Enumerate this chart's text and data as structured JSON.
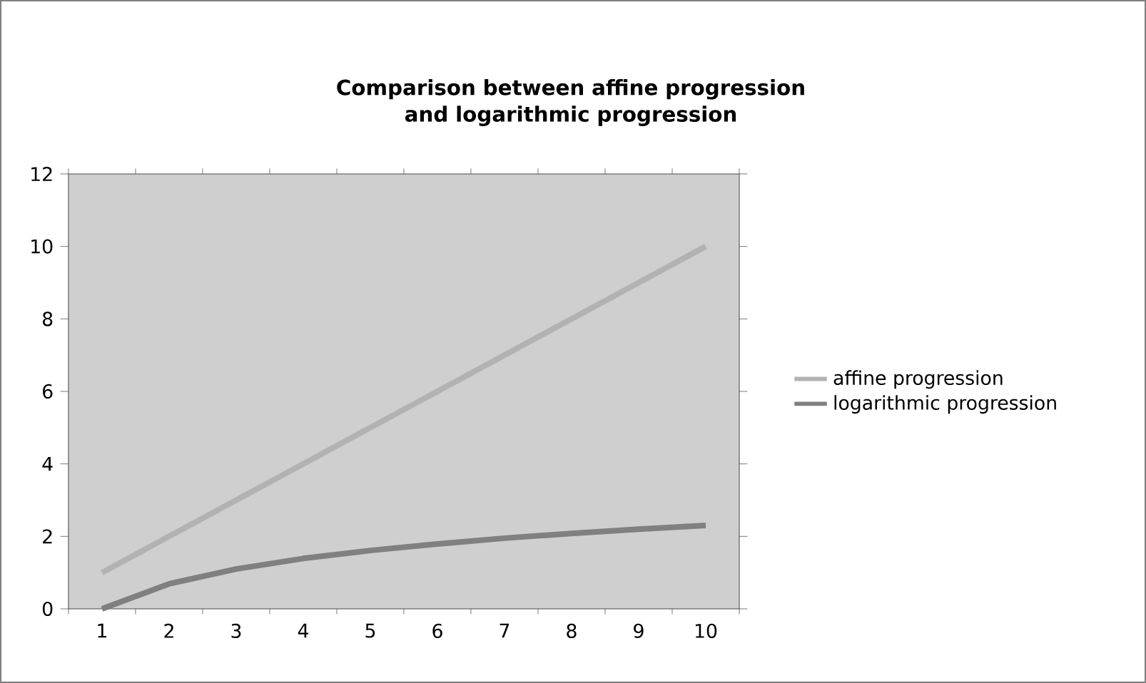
{
  "chart_data": {
    "type": "line",
    "title": "Comparison between affine progression and logarithmic progression",
    "categories": [
      "1",
      "2",
      "3",
      "4",
      "5",
      "6",
      "7",
      "8",
      "9",
      "10"
    ],
    "series": [
      {
        "name": "affine progression",
        "color": "#b2b2b2",
        "values": [
          1,
          2,
          3,
          4,
          5,
          6,
          7,
          8,
          9,
          10
        ]
      },
      {
        "name": "logarithmic progression",
        "color": "#808080",
        "values": [
          0,
          0.69,
          1.1,
          1.39,
          1.61,
          1.79,
          1.95,
          2.08,
          2.2,
          2.3
        ]
      }
    ],
    "ylim": [
      0,
      12
    ],
    "yticks": [
      0,
      2,
      4,
      6,
      8,
      10,
      12
    ],
    "legend": "right",
    "marker": "none",
    "line_style": "solid"
  }
}
